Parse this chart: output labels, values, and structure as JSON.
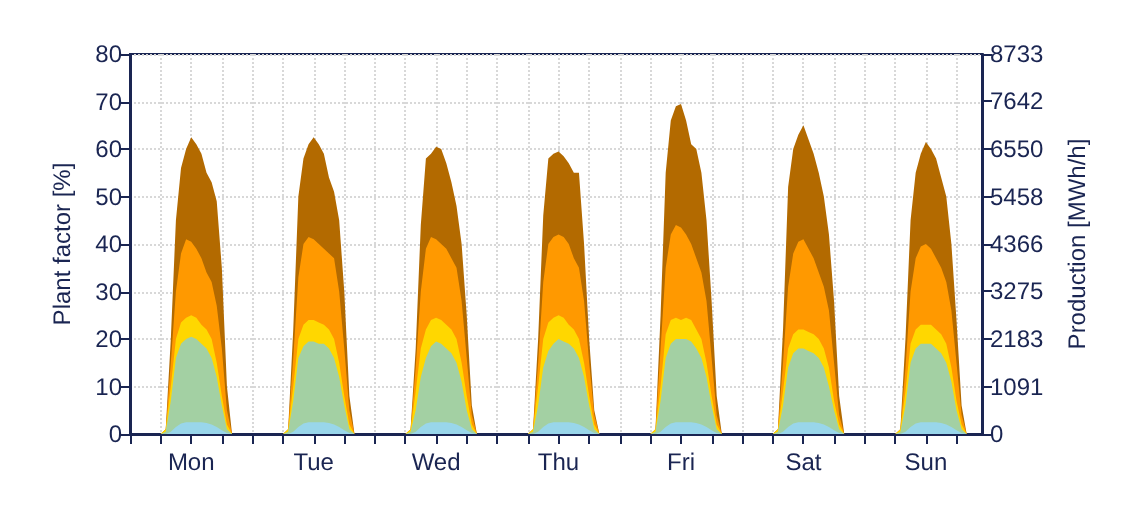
{
  "chart_data": {
    "type": "area",
    "ylabel": "Plant factor [%]",
    "y2label": "Production [MWh/h]",
    "categories": [
      null,
      null,
      null,
      null,
      null,
      null,
      null,
      null,
      null,
      null,
      null,
      null,
      "Mon",
      null,
      null,
      null,
      null,
      null,
      null,
      null,
      null,
      null,
      null,
      null,
      null,
      null,
      null,
      null,
      null,
      null,
      null,
      null,
      null,
      null,
      null,
      null,
      "Tue",
      null,
      null,
      null,
      null,
      null,
      null,
      null,
      null,
      null,
      null,
      null,
      null,
      null,
      null,
      null,
      null,
      null,
      null,
      null,
      null,
      null,
      null,
      null,
      "Wed",
      null,
      null,
      null,
      null,
      null,
      null,
      null,
      null,
      null,
      null,
      null,
      null,
      null,
      null,
      null,
      null,
      null,
      null,
      null,
      null,
      null,
      null,
      null,
      "Thu",
      null,
      null,
      null,
      null,
      null,
      null,
      null,
      null,
      null,
      null,
      null,
      null,
      null,
      null,
      null,
      null,
      null,
      null,
      null,
      null,
      null,
      null,
      null,
      "Fri",
      null,
      null,
      null,
      null,
      null,
      null,
      null,
      null,
      null,
      null,
      null,
      null,
      null,
      null,
      null,
      null,
      null,
      null,
      null,
      null,
      null,
      null,
      null,
      "Sat",
      null,
      null,
      null,
      null,
      null,
      null,
      null,
      null,
      null,
      null,
      null,
      null,
      null,
      null,
      null,
      null,
      null,
      null,
      null,
      null,
      null,
      null,
      null,
      "Sun",
      null,
      null,
      null,
      null,
      null,
      null,
      null,
      null,
      null,
      null,
      null
    ],
    "series": [
      {
        "color": "#b36a00",
        "values": [
          0,
          0,
          0,
          0,
          0,
          0,
          0,
          1,
          20,
          45,
          56,
          60,
          62.5,
          61,
          59,
          55,
          53,
          49,
          35,
          10,
          0,
          0,
          0,
          0,
          0,
          0,
          0,
          0,
          0,
          0,
          0,
          1,
          22,
          50,
          58,
          61,
          62.5,
          61,
          59,
          54,
          51,
          45,
          30,
          8,
          0,
          0,
          0,
          0,
          0,
          0,
          0,
          0,
          0,
          0,
          0,
          1,
          18,
          44,
          58,
          59,
          60.5,
          60,
          57,
          53,
          48,
          40,
          25,
          6,
          0,
          0,
          0,
          0,
          0,
          0,
          0,
          0,
          0,
          0,
          0,
          1,
          20,
          46,
          58,
          59,
          59.5,
          58.5,
          57,
          55,
          55,
          40,
          20,
          5,
          0,
          0,
          0,
          0,
          0,
          0,
          0,
          0,
          0,
          0,
          0,
          1,
          25,
          55,
          66,
          69,
          69.5,
          66,
          61,
          60,
          55,
          45,
          28,
          8,
          0,
          0,
          0,
          0,
          0,
          0,
          0,
          0,
          0,
          0,
          0,
          1,
          22,
          52,
          60,
          63,
          65,
          62,
          59,
          55,
          50,
          42,
          28,
          8,
          0,
          0,
          0,
          0,
          0,
          0,
          0,
          0,
          0,
          0,
          0,
          1,
          20,
          45,
          55,
          59,
          61.5,
          60,
          58,
          54,
          50,
          40,
          24,
          6,
          0,
          0,
          0,
          0
        ]
      },
      {
        "color": "#ff9900",
        "values": [
          0,
          0,
          0,
          0,
          0,
          0,
          0,
          1,
          15,
          30,
          38,
          41,
          40.5,
          39,
          37,
          34,
          32,
          27,
          18,
          5,
          0,
          0,
          0,
          0,
          0,
          0,
          0,
          0,
          0,
          0,
          0,
          1,
          16,
          33,
          40,
          41.5,
          41,
          40,
          39,
          38,
          37,
          30,
          18,
          5,
          0,
          0,
          0,
          0,
          0,
          0,
          0,
          0,
          0,
          0,
          0,
          1,
          14,
          30,
          39,
          41.5,
          41,
          40,
          39,
          37,
          35,
          28,
          16,
          4,
          0,
          0,
          0,
          0,
          0,
          0,
          0,
          0,
          0,
          0,
          0,
          1,
          15,
          32,
          40,
          41.5,
          42,
          41.5,
          40,
          37,
          35,
          28,
          15,
          4,
          0,
          0,
          0,
          0,
          0,
          0,
          0,
          0,
          0,
          0,
          0,
          1,
          18,
          35,
          42,
          44,
          43.5,
          42,
          40,
          37,
          34,
          28,
          16,
          4,
          0,
          0,
          0,
          0,
          0,
          0,
          0,
          0,
          0,
          0,
          0,
          1,
          15,
          31,
          38,
          40.5,
          41,
          39,
          37,
          34,
          31,
          26,
          15,
          4,
          0,
          0,
          0,
          0,
          0,
          0,
          0,
          0,
          0,
          0,
          0,
          1,
          14,
          30,
          37,
          39.5,
          40,
          39,
          37,
          35,
          32,
          26,
          15,
          4,
          0,
          0,
          0,
          0
        ]
      },
      {
        "color": "#ffd700",
        "values": [
          0,
          0,
          0,
          0,
          0,
          0,
          0,
          1,
          10,
          20,
          23.5,
          24.5,
          25,
          24.5,
          23,
          22,
          20,
          15,
          8,
          2,
          0,
          0,
          0,
          0,
          0,
          0,
          0,
          0,
          0,
          0,
          0,
          1,
          10,
          20,
          23,
          24,
          24,
          23.5,
          23,
          22,
          20,
          15,
          8,
          2,
          0,
          0,
          0,
          0,
          0,
          0,
          0,
          0,
          0,
          0,
          0,
          1,
          9,
          18,
          22,
          24,
          24.5,
          24,
          23,
          22,
          20,
          15,
          8,
          2,
          0,
          0,
          0,
          0,
          0,
          0,
          0,
          0,
          0,
          0,
          0,
          1,
          10,
          20,
          23.5,
          24.5,
          25,
          24.5,
          23,
          22,
          20,
          15,
          8,
          2,
          0,
          0,
          0,
          0,
          0,
          0,
          0,
          0,
          0,
          0,
          0,
          1,
          10,
          21,
          24,
          24.5,
          24,
          24.5,
          24,
          22,
          20,
          15,
          8,
          2,
          0,
          0,
          0,
          0,
          0,
          0,
          0,
          0,
          0,
          0,
          0,
          1,
          9,
          18,
          21,
          22,
          22,
          21.5,
          21,
          20,
          18,
          14,
          7,
          2,
          0,
          0,
          0,
          0,
          0,
          0,
          0,
          0,
          0,
          0,
          0,
          1,
          9,
          19,
          22,
          23,
          23,
          23,
          22,
          21,
          19,
          14,
          7,
          2,
          0,
          0,
          0,
          0
        ]
      },
      {
        "color": "#a3d0a3",
        "values": [
          0,
          0,
          0,
          0,
          0,
          0,
          0,
          0.5,
          7,
          16,
          19,
          20,
          20.5,
          20,
          19,
          18,
          16,
          12,
          6,
          1,
          0,
          0,
          0,
          0,
          0,
          0,
          0,
          0,
          0,
          0,
          0,
          0.5,
          7,
          16,
          18.5,
          19.5,
          19.5,
          19,
          19,
          18,
          16,
          12,
          6,
          1,
          0,
          0,
          0,
          0,
          0,
          0,
          0,
          0,
          0,
          0,
          0,
          0.5,
          5,
          12,
          16,
          18.5,
          19.5,
          19,
          18,
          17,
          15,
          11,
          5,
          1,
          0,
          0,
          0,
          0,
          0,
          0,
          0,
          0,
          0,
          0,
          0,
          0.5,
          6,
          14,
          17.5,
          19,
          20,
          19.5,
          19,
          18,
          16,
          12,
          6,
          1,
          0,
          0,
          0,
          0,
          0,
          0,
          0,
          0,
          0,
          0,
          0,
          0.5,
          7,
          16,
          19,
          20,
          20,
          20,
          19.5,
          18,
          16,
          12,
          6,
          1,
          0,
          0,
          0,
          0,
          0,
          0,
          0,
          0,
          0,
          0,
          0,
          0.5,
          6,
          14,
          17,
          18,
          18,
          17.5,
          17,
          16,
          14,
          10,
          5,
          1,
          0,
          0,
          0,
          0,
          0,
          0,
          0,
          0,
          0,
          0,
          0,
          0.5,
          6,
          15,
          18,
          19,
          19,
          19,
          18,
          17,
          15,
          11,
          5,
          1,
          0,
          0,
          0,
          0
        ]
      },
      {
        "color": "#99d6ea",
        "values": [
          0,
          0,
          0,
          0,
          0,
          0,
          0,
          0,
          0.5,
          1.5,
          2.2,
          2.5,
          2.5,
          2.5,
          2.5,
          2.3,
          2,
          1.5,
          0.8,
          0.2,
          0,
          0,
          0,
          0,
          0,
          0,
          0,
          0,
          0,
          0,
          0,
          0,
          0.5,
          1.5,
          2.2,
          2.5,
          2.5,
          2.5,
          2.5,
          2.3,
          2,
          1.5,
          0.8,
          0.2,
          0,
          0,
          0,
          0,
          0,
          0,
          0,
          0,
          0,
          0,
          0,
          0,
          0.5,
          1.5,
          2.2,
          2.5,
          2.5,
          2.5,
          2.5,
          2.3,
          2,
          1.5,
          0.8,
          0.2,
          0,
          0,
          0,
          0,
          0,
          0,
          0,
          0,
          0,
          0,
          0,
          0,
          0.5,
          1.5,
          2.2,
          2.5,
          2.5,
          2.5,
          2.5,
          2.3,
          2,
          1.5,
          0.8,
          0.2,
          0,
          0,
          0,
          0,
          0,
          0,
          0,
          0,
          0,
          0,
          0,
          0,
          0.5,
          1.5,
          2.2,
          2.5,
          2.5,
          2.5,
          2.5,
          2.3,
          2,
          1.5,
          0.8,
          0.2,
          0,
          0,
          0,
          0,
          0,
          0,
          0,
          0,
          0,
          0,
          0,
          0,
          0.5,
          1.5,
          2.2,
          2.5,
          2.5,
          2.5,
          2.5,
          2.3,
          2,
          1.5,
          0.8,
          0.2,
          0,
          0,
          0,
          0,
          0,
          0,
          0,
          0,
          0,
          0,
          0,
          0,
          0.5,
          1.5,
          2.2,
          2.5,
          2.5,
          2.5,
          2.5,
          2.3,
          2,
          1.5,
          0.8,
          0.2,
          0,
          0,
          0,
          0
        ]
      }
    ],
    "ylim": [
      0,
      80
    ],
    "yticks": [
      0,
      10,
      20,
      30,
      40,
      50,
      60,
      70,
      80
    ],
    "y2lim": [
      0,
      8733
    ],
    "y2ticks": [
      0,
      1091,
      2183,
      3275,
      4366,
      5458,
      6550,
      7642,
      8733
    ],
    "grid": true,
    "marker": "none"
  }
}
